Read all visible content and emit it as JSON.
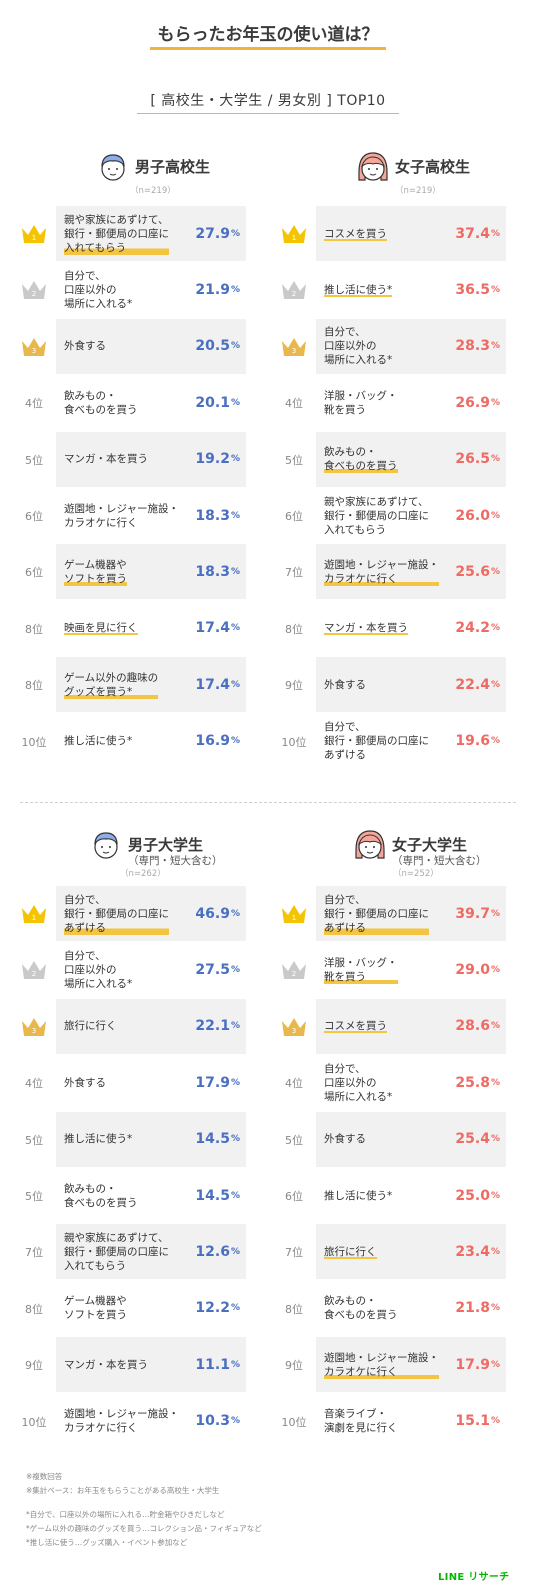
{
  "title": "もらったお年玉の使い道は？",
  "subtitle": "[ 高校生・大学生 / 男女別 ] TOP10",
  "colors": {
    "male": "#4a6fc1",
    "female": "#ef6a63",
    "accent": "#f2b33d",
    "gold": "#f5c400",
    "silver": "#c9c9c9",
    "bronze": "#e8b84d"
  },
  "chart_data": [
    {
      "type": "table",
      "group": "男子高校生",
      "group_sub": "",
      "n": "（n=219）",
      "color": "male",
      "icon": "male-highschool-face-icon",
      "rows": [
        {
          "rank": "1",
          "label": "親や家族にあずけて、\n銀行・郵便局の口座に\n入れてもらう",
          "value": 27.9,
          "underline": true
        },
        {
          "rank": "2",
          "label": "自分で、\n口座以外の\n場所に入れる*",
          "value": 21.9,
          "underline": false
        },
        {
          "rank": "3",
          "label": "外食する",
          "value": 20.5,
          "underline": false
        },
        {
          "rank": "4位",
          "label": "飲みもの・\n食べものを買う",
          "value": 20.1,
          "underline": false
        },
        {
          "rank": "5位",
          "label": "マンガ・本を買う",
          "value": 19.2,
          "underline": false
        },
        {
          "rank": "6位",
          "label": "遊園地・レジャー施設・\nカラオケに行く",
          "value": 18.3,
          "underline": false
        },
        {
          "rank": "6位",
          "label": "ゲーム機器や\nソフトを買う",
          "value": 18.3,
          "underline": true
        },
        {
          "rank": "8位",
          "label": "映画を見に行く",
          "value": 17.4,
          "underline": true
        },
        {
          "rank": "8位",
          "label": "ゲーム以外の趣味の\nグッズを買う*",
          "value": 17.4,
          "underline": true
        },
        {
          "rank": "10位",
          "label": "推し活に使う*",
          "value": 16.9,
          "underline": false
        }
      ]
    },
    {
      "type": "table",
      "group": "女子高校生",
      "group_sub": "",
      "n": "（n=219）",
      "color": "female",
      "icon": "female-highschool-face-icon",
      "rows": [
        {
          "rank": "1",
          "label": "コスメを買う",
          "value": 37.4,
          "underline": true
        },
        {
          "rank": "2",
          "label": "推し活に使う*",
          "value": 36.5,
          "underline": true
        },
        {
          "rank": "3",
          "label": "自分で、\n口座以外の\n場所に入れる*",
          "value": 28.3,
          "underline": false
        },
        {
          "rank": "4位",
          "label": "洋服・バッグ・\n靴を買う",
          "value": 26.9,
          "underline": false
        },
        {
          "rank": "5位",
          "label": "飲みもの・\n食べものを買う",
          "value": 26.5,
          "underline": true
        },
        {
          "rank": "6位",
          "label": "親や家族にあずけて、\n銀行・郵便局の口座に\n入れてもらう",
          "value": 26.0,
          "underline": false
        },
        {
          "rank": "7位",
          "label": "遊園地・レジャー施設・\nカラオケに行く",
          "value": 25.6,
          "underline": true
        },
        {
          "rank": "8位",
          "label": "マンガ・本を買う",
          "value": 24.2,
          "underline": true
        },
        {
          "rank": "9位",
          "label": "外食する",
          "value": 22.4,
          "underline": false
        },
        {
          "rank": "10位",
          "label": "自分で、\n銀行・郵便局の口座に\nあずける",
          "value": 19.6,
          "underline": false
        }
      ]
    },
    {
      "type": "table",
      "group": "男子大学生",
      "group_sub": "（専門・短大含む）",
      "n": "（n=262）",
      "color": "male",
      "icon": "male-university-face-icon",
      "rows": [
        {
          "rank": "1",
          "label": "自分で、\n銀行・郵便局の口座に\nあずける",
          "value": 46.9,
          "underline": true
        },
        {
          "rank": "2",
          "label": "自分で、\n口座以外の\n場所に入れる*",
          "value": 27.5,
          "underline": false
        },
        {
          "rank": "3",
          "label": "旅行に行く",
          "value": 22.1,
          "underline": false
        },
        {
          "rank": "4位",
          "label": "外食する",
          "value": 17.9,
          "underline": false
        },
        {
          "rank": "5位",
          "label": "推し活に使う*",
          "value": 14.5,
          "underline": false
        },
        {
          "rank": "5位",
          "label": "飲みもの・\n食べものを買う",
          "value": 14.5,
          "underline": false
        },
        {
          "rank": "7位",
          "label": "親や家族にあずけて、\n銀行・郵便局の口座に\n入れてもらう",
          "value": 12.6,
          "underline": false
        },
        {
          "rank": "8位",
          "label": "ゲーム機器や\nソフトを買う",
          "value": 12.2,
          "underline": false
        },
        {
          "rank": "9位",
          "label": "マンガ・本を買う",
          "value": 11.1,
          "underline": false
        },
        {
          "rank": "10位",
          "label": "遊園地・レジャー施設・\nカラオケに行く",
          "value": 10.3,
          "underline": false
        }
      ]
    },
    {
      "type": "table",
      "group": "女子大学生",
      "group_sub": "（専門・短大含む）",
      "n": "（n=252）",
      "color": "female",
      "icon": "female-university-face-icon",
      "rows": [
        {
          "rank": "1",
          "label": "自分で、\n銀行・郵便局の口座に\nあずける",
          "value": 39.7,
          "underline": true
        },
        {
          "rank": "2",
          "label": "洋服・バッグ・\n靴を買う",
          "value": 29.0,
          "underline": true
        },
        {
          "rank": "3",
          "label": "コスメを買う",
          "value": 28.6,
          "underline": true
        },
        {
          "rank": "4位",
          "label": "自分で、\n口座以外の\n場所に入れる*",
          "value": 25.8,
          "underline": false
        },
        {
          "rank": "5位",
          "label": "外食する",
          "value": 25.4,
          "underline": false
        },
        {
          "rank": "6位",
          "label": "推し活に使う*",
          "value": 25.0,
          "underline": false
        },
        {
          "rank": "7位",
          "label": "旅行に行く",
          "value": 23.4,
          "underline": true
        },
        {
          "rank": "8位",
          "label": "飲みもの・\n食べものを買う",
          "value": 21.8,
          "underline": false
        },
        {
          "rank": "9位",
          "label": "遊園地・レジャー施設・\nカラオケに行く",
          "value": 17.9,
          "underline": true
        },
        {
          "rank": "10位",
          "label": "音楽ライブ・\n演劇を見に行く",
          "value": 15.1,
          "underline": false
        }
      ]
    }
  ],
  "notes": [
    "※複数回答",
    "※集計ベース：お年玉をもらうことがある高校生・大学生",
    "*自分で、口座以外の場所に入れる…貯金箱やひきだしなど",
    "*ゲーム以外の趣味のグッズを買う…コレクション品・フィギュアなど",
    "*推し活に使う…グッズ購入・イベント参加など"
  ],
  "logo": "LINE リサーチ"
}
